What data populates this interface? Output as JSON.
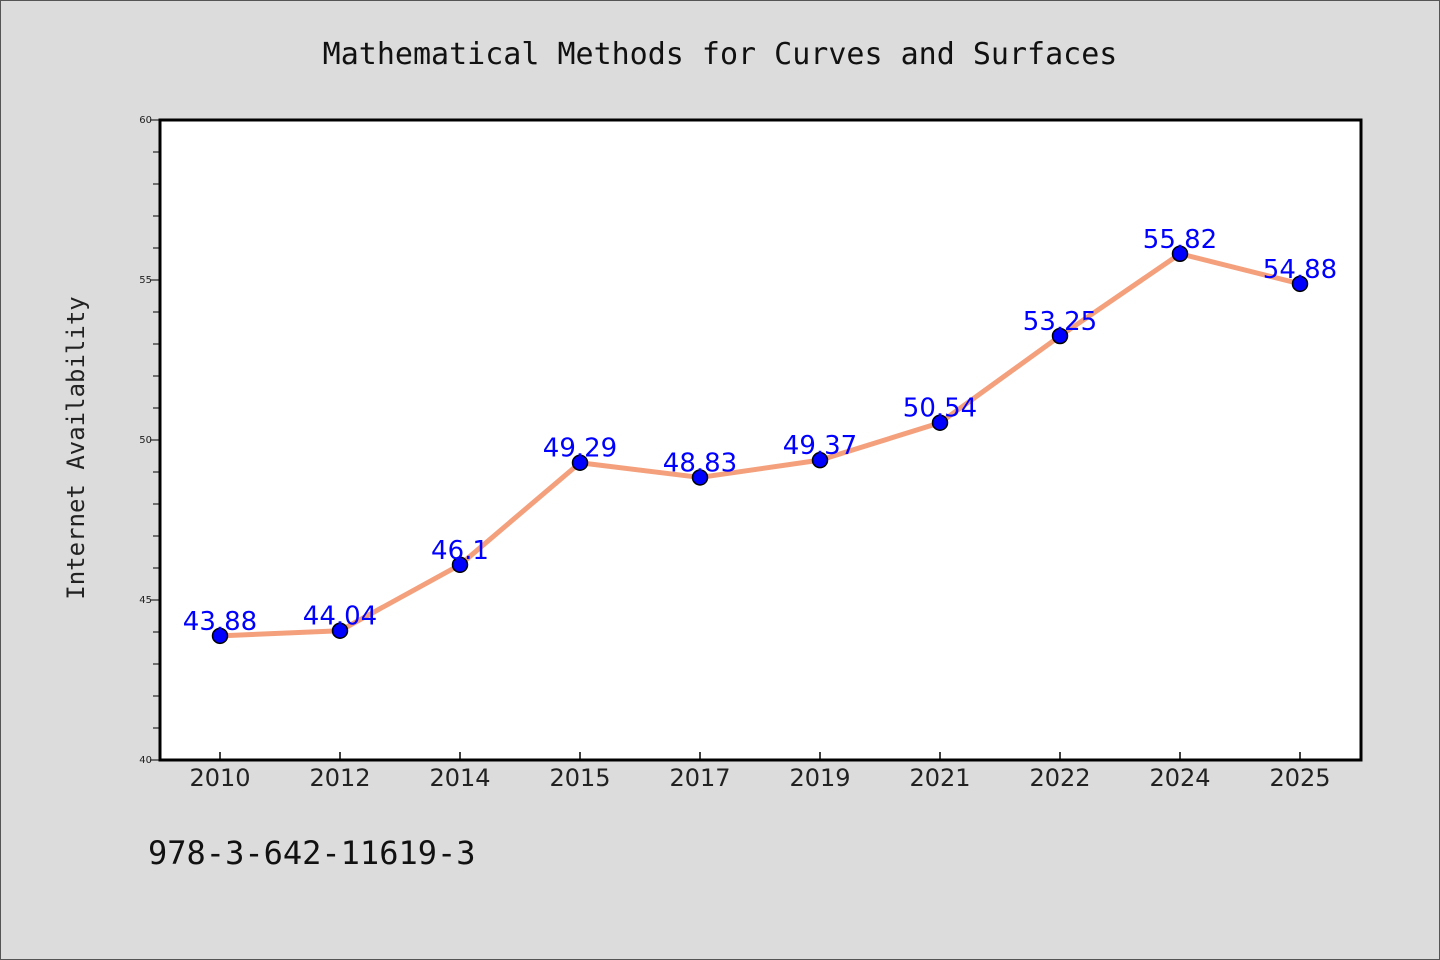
{
  "chart_data": {
    "type": "line",
    "title": "Mathematical Methods for Curves and Surfaces",
    "xlabel": "",
    "ylabel": "Internet Availability",
    "categories": [
      "2010",
      "2012",
      "2014",
      "2015",
      "2017",
      "2019",
      "2021",
      "2022",
      "2024",
      "2025"
    ],
    "series": [
      {
        "values": [
          43.88,
          44.04,
          46.1,
          49.29,
          48.83,
          49.37,
          50.54,
          53.25,
          55.82,
          54.88
        ],
        "labels": [
          "43.88",
          "44.04",
          "46.1",
          "49.29",
          "48.83",
          "49.37",
          "50.54",
          "53.25",
          "55.82",
          "54.88"
        ],
        "line_color": "#f4a07c",
        "marker_color": "#0000ff"
      }
    ],
    "ylim": [
      40,
      60
    ],
    "yticks": [
      "40",
      "45",
      "50",
      "55",
      "60"
    ],
    "grid": false,
    "legend": "none"
  },
  "footnote": "978-3-642-11619-3"
}
